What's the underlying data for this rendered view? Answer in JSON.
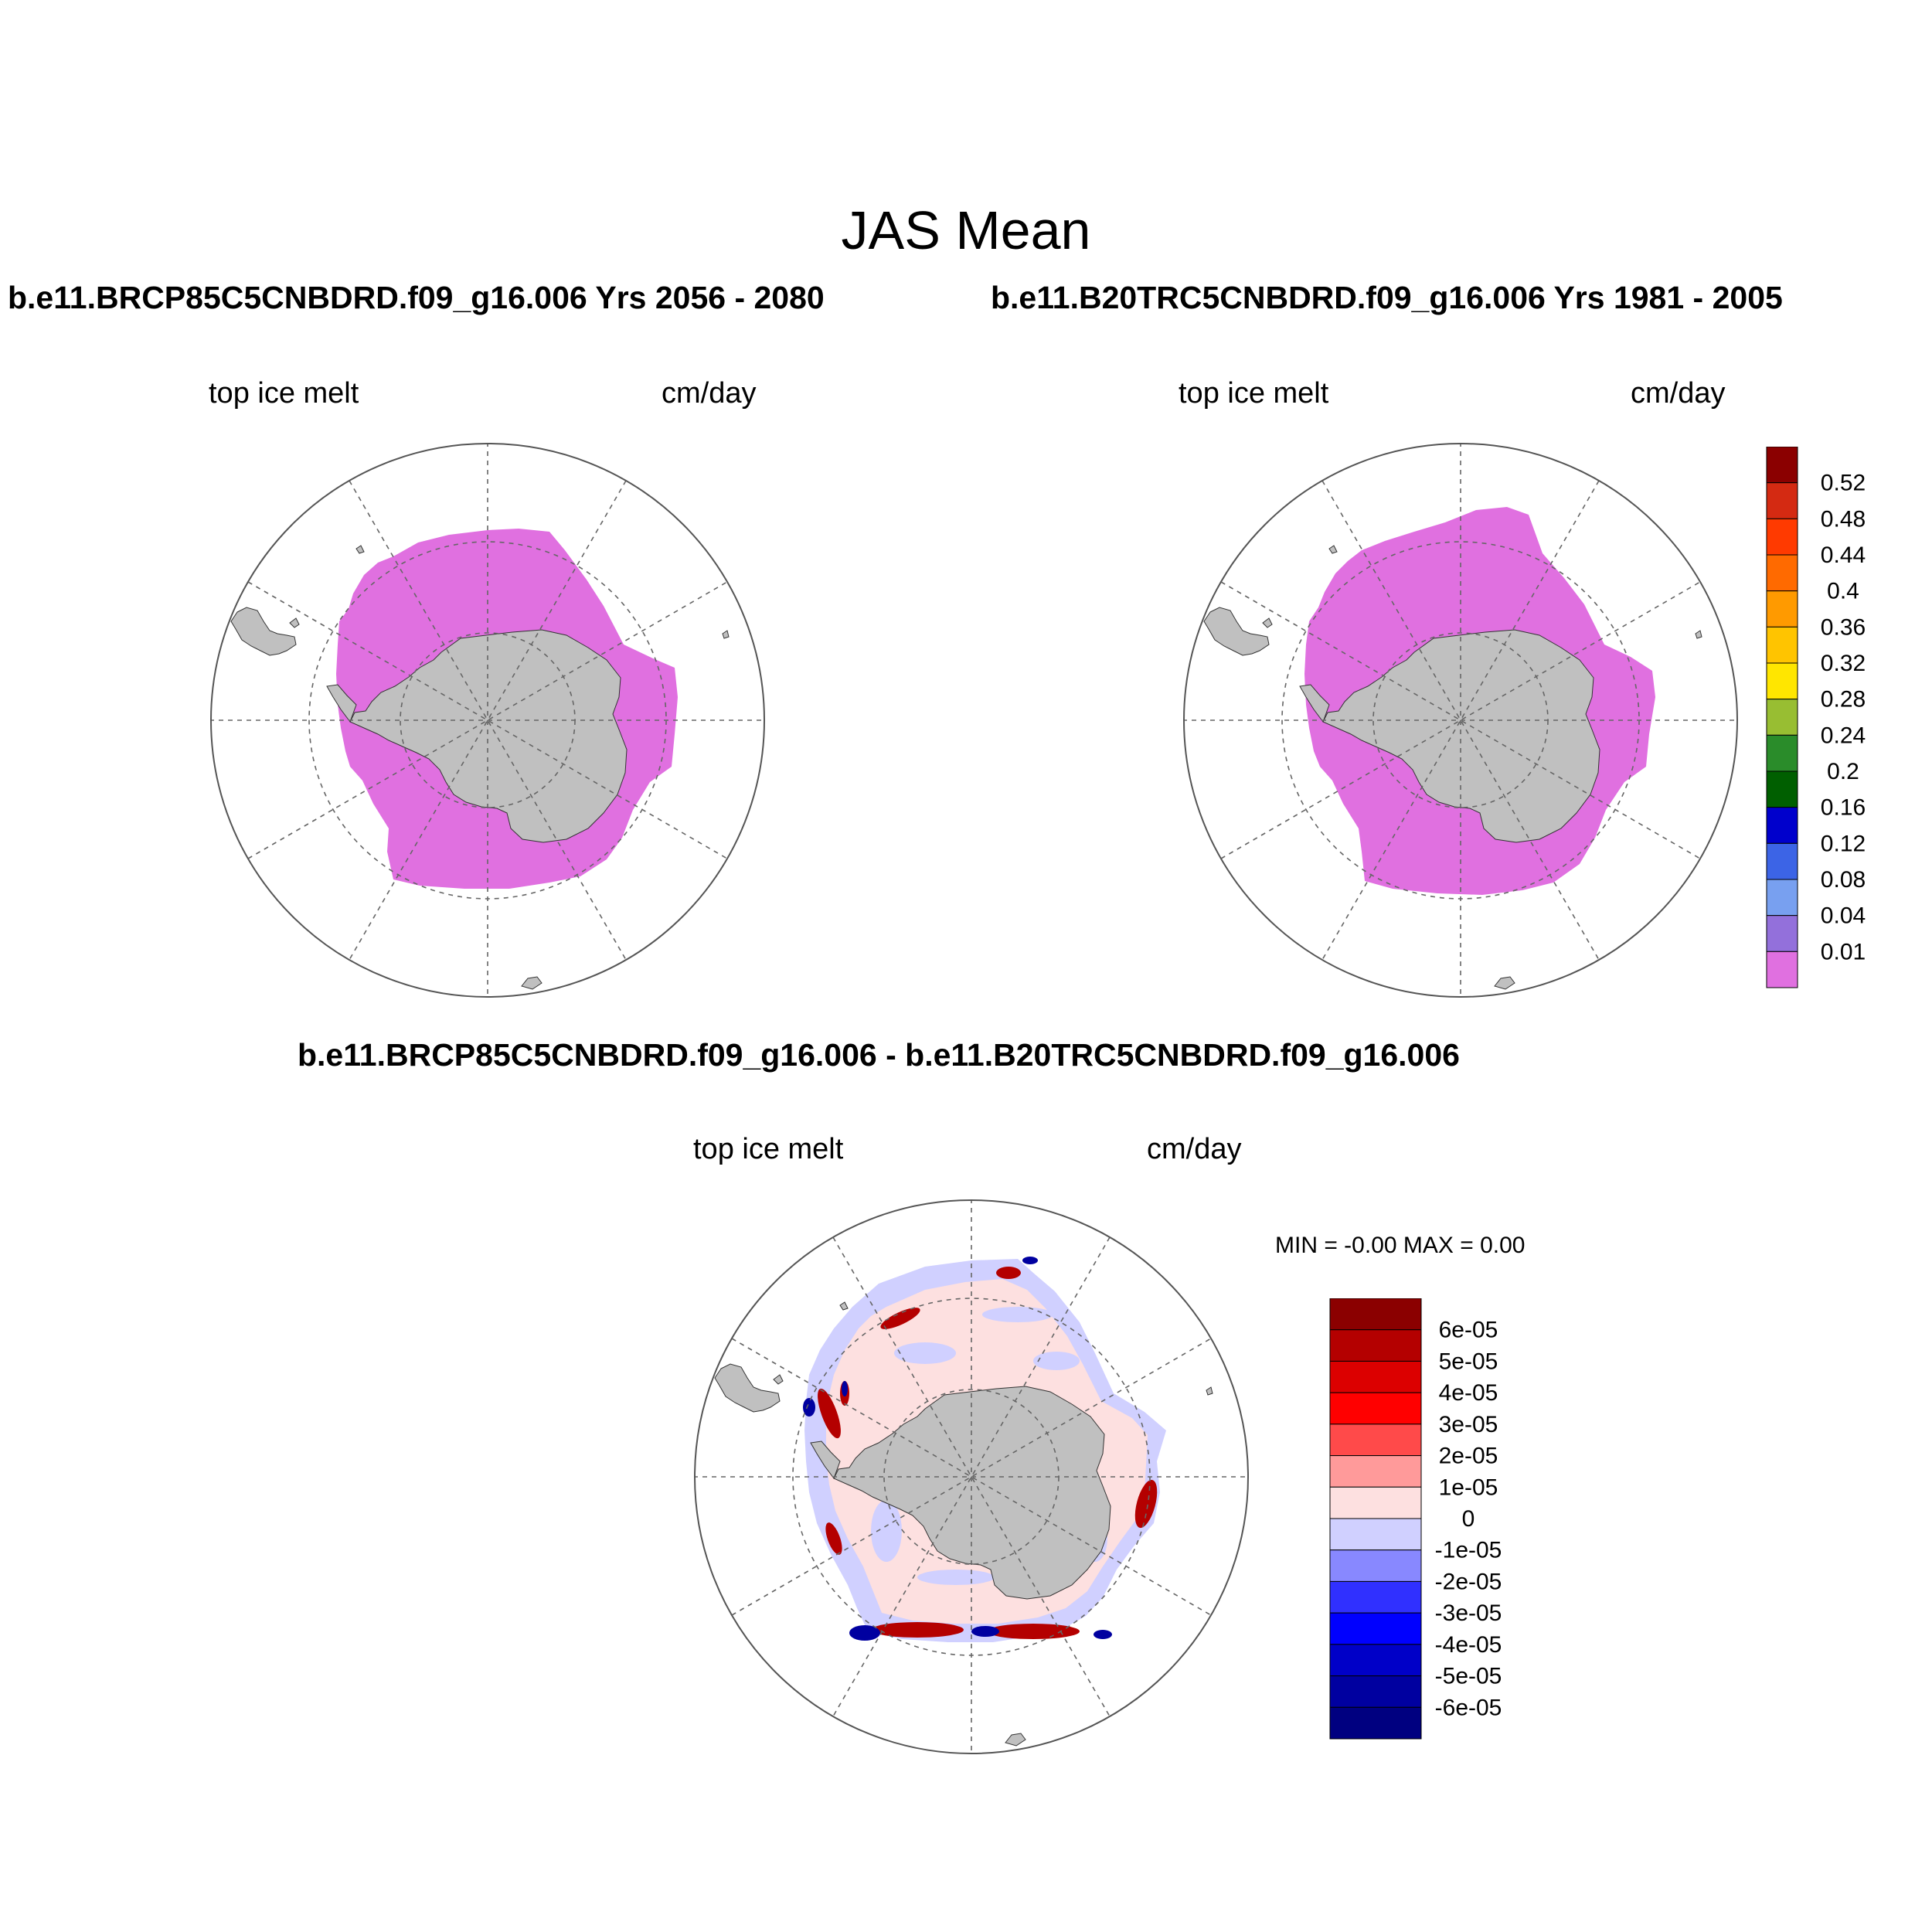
{
  "main_title": "JAS Mean",
  "panel_top_left": {
    "case_title": "b.e11.BRCP85C5CNBDRD.f09_g16.006  Yrs 2056 - 2080",
    "variable": "top ice melt",
    "units": "cm/day"
  },
  "panel_top_right": {
    "case_title": "b.e11.B20TRC5CNBDRD.f09_g16.006  Yrs 1981 - 2005",
    "variable": "top ice melt",
    "units": "cm/day"
  },
  "panel_diff": {
    "case_title": "b.e11.BRCP85C5CNBDRD.f09_g16.006 - b.e11.B20TRC5CNBDRD.f09_g16.006",
    "variable": "top ice melt",
    "units": "cm/day",
    "minmax": "MIN =  -0.00 MAX =   0.00"
  },
  "colorbar_top": {
    "labels": [
      "0.52",
      "0.48",
      "0.44",
      "0.4",
      "0.36",
      "0.32",
      "0.28",
      "0.24",
      "0.2",
      "0.16",
      "0.12",
      "0.08",
      "0.04",
      "0.01"
    ],
    "colors": [
      "#8b0000",
      "#d42a12",
      "#ff3a00",
      "#ff6a00",
      "#ff9a00",
      "#ffc400",
      "#ffe600",
      "#98be32",
      "#2a8c2a",
      "#005f00",
      "#0000cc",
      "#3c64e6",
      "#78a0f0",
      "#9370db",
      "#e070e0"
    ]
  },
  "colorbar_diff": {
    "labels": [
      "6e-05",
      "5e-05",
      "4e-05",
      "3e-05",
      "2e-05",
      "1e-05",
      "0",
      "-1e-05",
      "-2e-05",
      "-3e-05",
      "-4e-05",
      "-5e-05",
      "-6e-05"
    ],
    "colors": [
      "#8b0000",
      "#b40000",
      "#dc0000",
      "#ff0000",
      "#ff4a4a",
      "#ff9a9a",
      "#fde0e0",
      "#d0d0ff",
      "#8888ff",
      "#3030ff",
      "#0000ff",
      "#0000c8",
      "#0000a0",
      "#000080"
    ]
  },
  "map_colors": {
    "land": "#c0c0c0",
    "ice_field": "#e070e0",
    "diff_background": "#fde0e0",
    "diff_neg": "#d0d0ff"
  }
}
